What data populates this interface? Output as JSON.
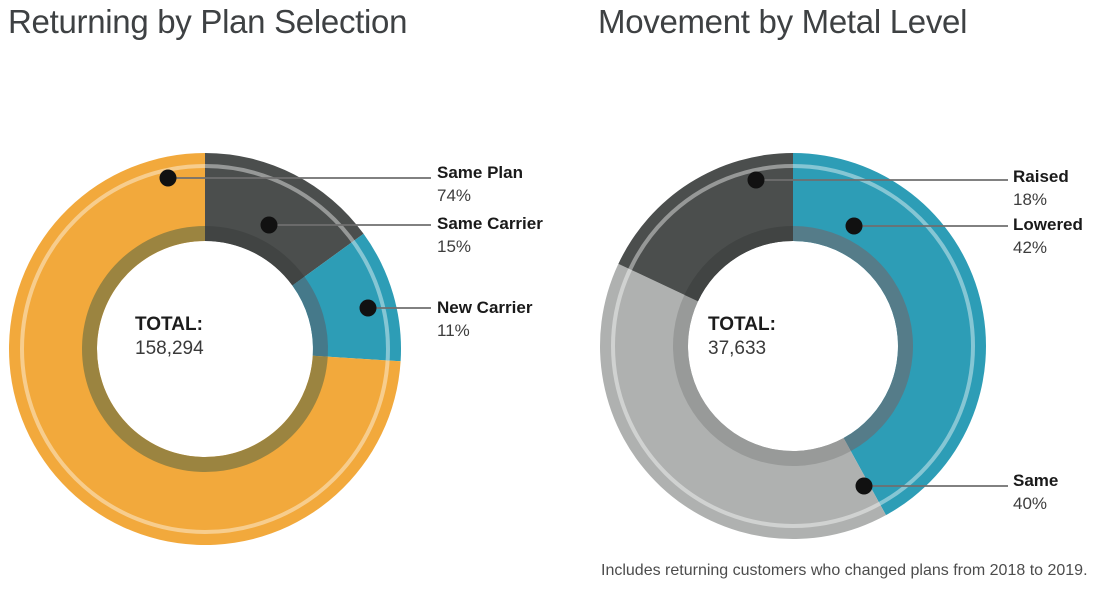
{
  "page": {
    "background_color": "#ffffff",
    "title_color": "#3e4143"
  },
  "footnote": "Includes returning customers who changed plans from 2018 to 2019.",
  "style": {
    "highlight_arc_color": "rgba(255,255,255,0.42)",
    "leader_line_color": "#6f6f6f",
    "dot_color": "#111111"
  },
  "chart_data": [
    {
      "type": "pie",
      "subtype": "donut",
      "title": "Returning by Plan Selection",
      "total_label": "TOTAL:",
      "total_value": "158,294",
      "total_numeric": 158294,
      "unit": "%",
      "legend_position": "right",
      "slices": [
        {
          "label": "Same Plan",
          "pct": "74%",
          "value": 74,
          "color": "#F2A93C",
          "inner_color": "#9B8440"
        },
        {
          "label": "Same Carrier",
          "pct": "15%",
          "value": 15,
          "color": "#4B4E4D",
          "inner_color": "#414443"
        },
        {
          "label": "New Carrier",
          "pct": "11%",
          "value": 11,
          "color": "#2D9DB6",
          "inner_color": "#45798A"
        }
      ],
      "clockwise_from_top": [
        "Same Carrier",
        "New Carrier",
        "Same Plan"
      ]
    },
    {
      "type": "pie",
      "subtype": "donut",
      "title": "Movement by Metal Level",
      "total_label": "TOTAL:",
      "total_value": "37,633",
      "total_numeric": 37633,
      "unit": "%",
      "legend_position": "right",
      "slices": [
        {
          "label": "Raised",
          "pct": "18%",
          "value": 18,
          "color": "#4B4E4D",
          "inner_color": "#414443"
        },
        {
          "label": "Lowered",
          "pct": "42%",
          "value": 42,
          "color": "#2D9DB6",
          "inner_color": "#557C89"
        },
        {
          "label": "Same",
          "pct": "40%",
          "value": 40,
          "color": "#AFB1B0",
          "inner_color": "#989A99"
        }
      ],
      "clockwise_from_top": [
        "Lowered",
        "Same",
        "Raised"
      ]
    }
  ]
}
